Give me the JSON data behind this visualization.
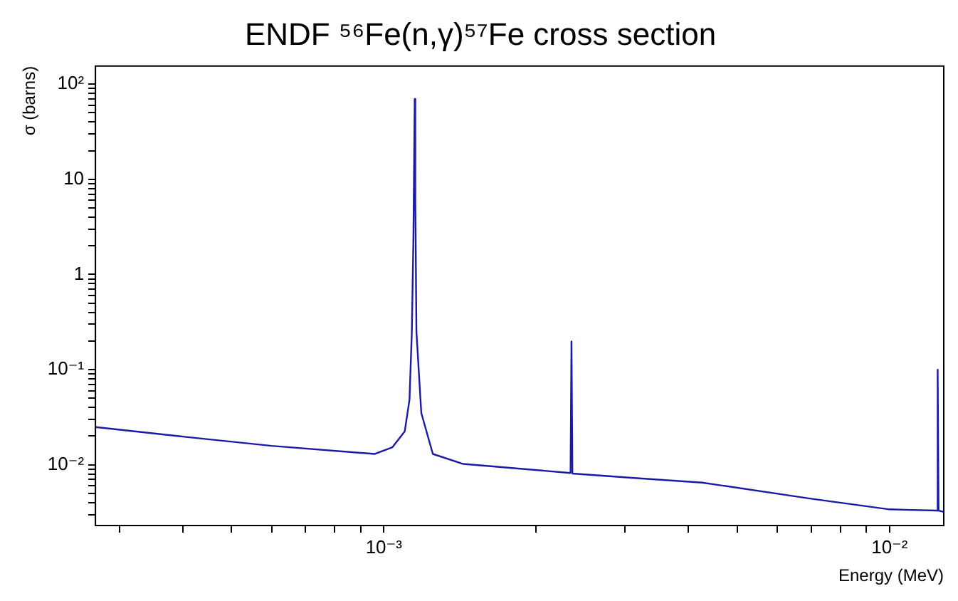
{
  "chart_data": {
    "type": "line",
    "title": "ENDF ⁵⁶Fe(n,γ)⁵⁷Fe cross section",
    "xlabel": "Energy (MeV)",
    "ylabel": "σ (barns)",
    "log": "xy",
    "grid": false,
    "x": [
      0.000269,
      0.0004,
      0.0006,
      0.00096,
      0.00104,
      0.0011,
      0.001124,
      0.001136,
      0.001144,
      0.001151,
      0.001154,
      0.00116,
      0.001186,
      0.00125,
      0.001436,
      0.00234,
      0.00235,
      0.00236,
      0.00309,
      0.00426,
      0.007,
      0.01,
      0.0124,
      0.01245,
      0.0125,
      0.0128
    ],
    "series": [
      {
        "color": "#1a1aa6",
        "values": [
          0.0249,
          0.0198,
          0.0158,
          0.013,
          0.0153,
          0.0225,
          0.0485,
          0.251,
          2.25,
          70,
          6.7,
          0.251,
          0.035,
          0.013,
          0.0102,
          0.0082,
          0.198,
          0.0081,
          0.0073,
          0.0065,
          0.0044,
          0.0034,
          0.0033,
          0.1,
          0.0033,
          0.0032
        ]
      }
    ],
    "xlim": [
      0.000269,
      0.0128
    ],
    "ylim": [
      0.0023,
      155
    ],
    "xticks": [
      {
        "value": 0.0003,
        "label": null
      },
      {
        "value": 0.0004,
        "label": null
      },
      {
        "value": 0.0005,
        "label": null
      },
      {
        "value": 0.0006,
        "label": null
      },
      {
        "value": 0.0007,
        "label": null
      },
      {
        "value": 0.0008,
        "label": null
      },
      {
        "value": 0.0009,
        "label": null
      },
      {
        "value": 0.001,
        "label": "10⁻³"
      },
      {
        "value": 0.002,
        "label": null
      },
      {
        "value": 0.003,
        "label": null
      },
      {
        "value": 0.004,
        "label": null
      },
      {
        "value": 0.005,
        "label": null
      },
      {
        "value": 0.006,
        "label": null
      },
      {
        "value": 0.007,
        "label": null
      },
      {
        "value": 0.008,
        "label": null
      },
      {
        "value": 0.009,
        "label": null
      },
      {
        "value": 0.01,
        "label": "10⁻²"
      }
    ],
    "yticks": [
      {
        "value": 0.003,
        "label": null
      },
      {
        "value": 0.004,
        "label": null
      },
      {
        "value": 0.005,
        "label": null
      },
      {
        "value": 0.006,
        "label": null
      },
      {
        "value": 0.007,
        "label": null
      },
      {
        "value": 0.008,
        "label": null
      },
      {
        "value": 0.009,
        "label": null
      },
      {
        "value": 0.01,
        "label": "10⁻²"
      },
      {
        "value": 0.02,
        "label": null
      },
      {
        "value": 0.03,
        "label": null
      },
      {
        "value": 0.04,
        "label": null
      },
      {
        "value": 0.05,
        "label": null
      },
      {
        "value": 0.06,
        "label": null
      },
      {
        "value": 0.07,
        "label": null
      },
      {
        "value": 0.08,
        "label": null
      },
      {
        "value": 0.09,
        "label": null
      },
      {
        "value": 0.1,
        "label": "10⁻¹"
      },
      {
        "value": 0.2,
        "label": null
      },
      {
        "value": 0.3,
        "label": null
      },
      {
        "value": 0.4,
        "label": null
      },
      {
        "value": 0.5,
        "label": null
      },
      {
        "value": 0.6,
        "label": null
      },
      {
        "value": 0.7,
        "label": null
      },
      {
        "value": 0.8,
        "label": null
      },
      {
        "value": 0.9,
        "label": null
      },
      1,
      {
        "value": 2,
        "label": null
      },
      {
        "value": 3,
        "label": null
      },
      {
        "value": 4,
        "label": null
      },
      {
        "value": 5,
        "label": null
      },
      {
        "value": 6,
        "label": null
      },
      {
        "value": 7,
        "label": null
      },
      {
        "value": 8,
        "label": null
      },
      {
        "value": 9,
        "label": null
      },
      10,
      {
        "value": 20,
        "label": null
      },
      {
        "value": 30,
        "label": null
      },
      {
        "value": 40,
        "label": null
      },
      {
        "value": 50,
        "label": null
      },
      {
        "value": 60,
        "label": null
      },
      {
        "value": 70,
        "label": null
      },
      {
        "value": 80,
        "label": null
      },
      {
        "value": 90,
        "label": null
      },
      {
        "value": 100,
        "label": "10²"
      }
    ],
    "legend": false
  }
}
